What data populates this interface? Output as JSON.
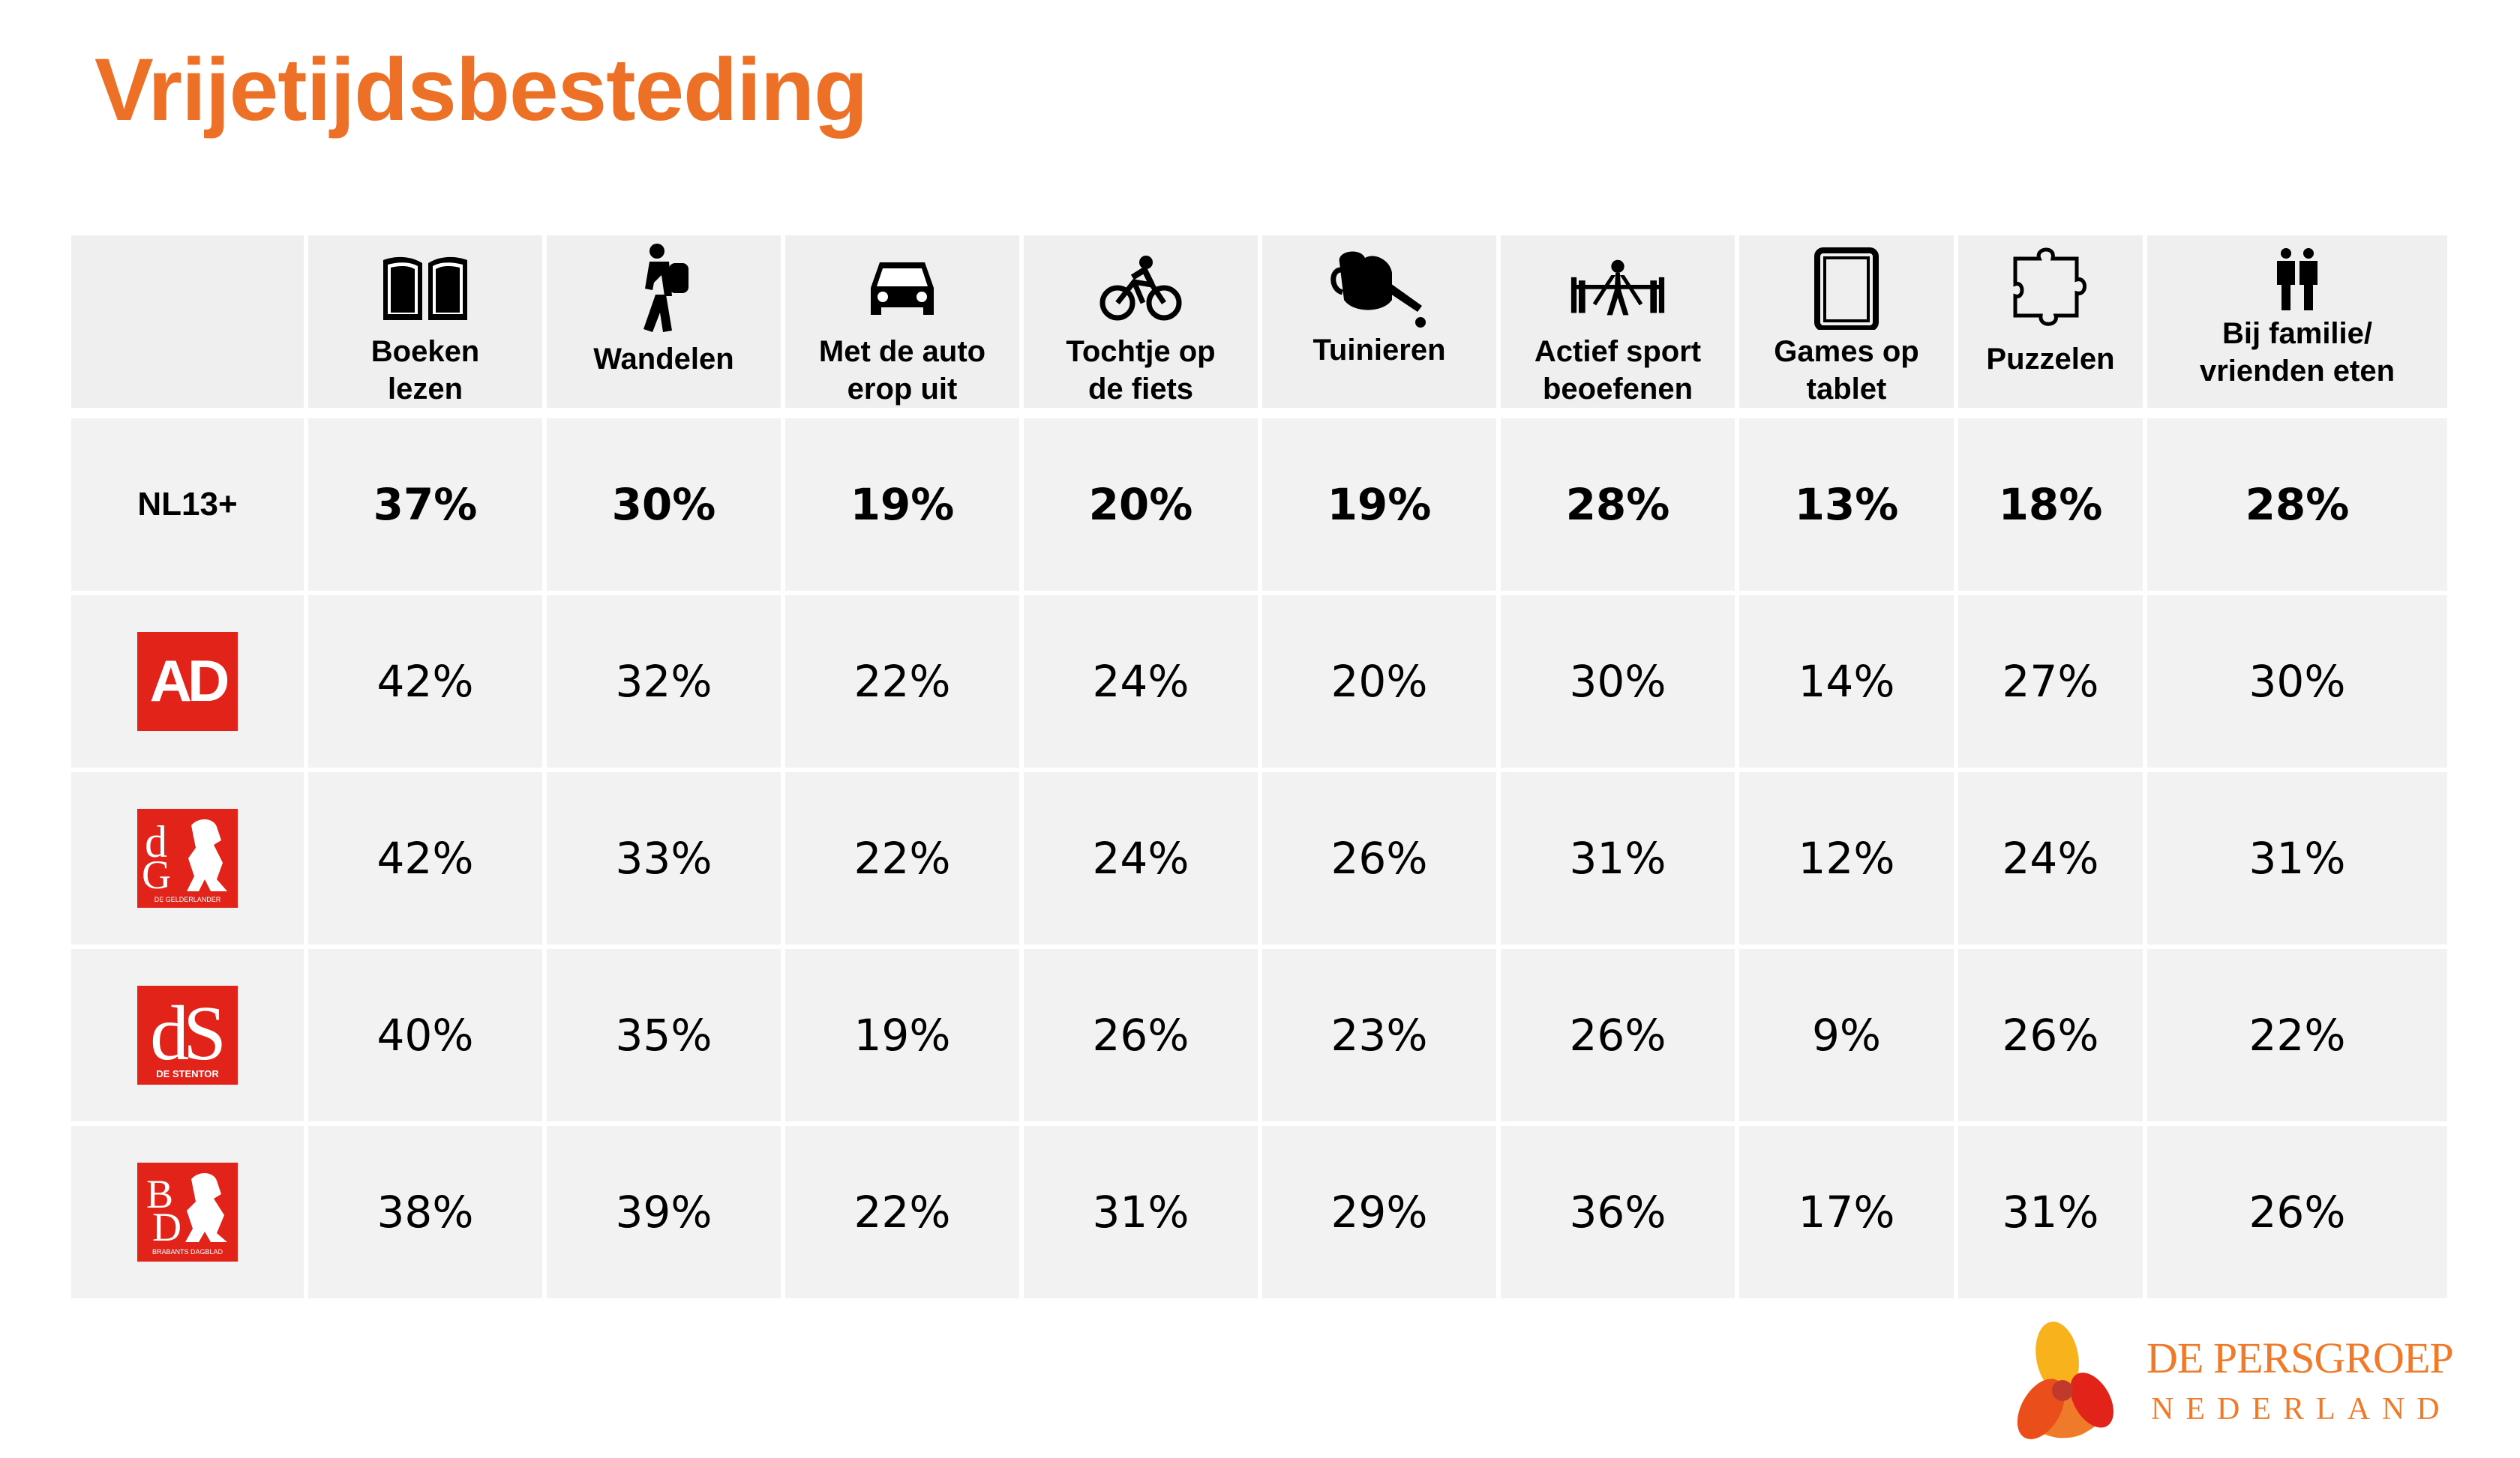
{
  "title": "Vrijetijdsbesteding",
  "columns": [
    {
      "label": "Boeken\nlezen",
      "icon": "book-icon"
    },
    {
      "label": "Wandelen",
      "icon": "hiker-icon"
    },
    {
      "label": "Met de auto\nerop uit",
      "icon": "car-icon"
    },
    {
      "label": "Tochtje op\nde fiets",
      "icon": "cyclist-icon"
    },
    {
      "label": "Tuinieren",
      "icon": "watering-can-icon"
    },
    {
      "label": "Actief sport\nbeoefenen",
      "icon": "weightlifter-icon"
    },
    {
      "label": "Games op\ntablet",
      "icon": "tablet-icon"
    },
    {
      "label": "Puzzelen",
      "icon": "puzzle-icon"
    },
    {
      "label": "Bij familie/\nvrienden eten",
      "icon": "family-icon"
    }
  ],
  "rows": [
    {
      "label": "NL13+",
      "values": [
        "37%",
        "30%",
        "19%",
        "20%",
        "19%",
        "28%",
        "13%",
        "18%",
        "28%"
      ]
    },
    {
      "logo": "AD",
      "values": [
        "42%",
        "32%",
        "22%",
        "24%",
        "20%",
        "30%",
        "14%",
        "27%",
        "30%"
      ]
    },
    {
      "logo": "dG",
      "logo_caption": "DE GELDERLANDER",
      "values": [
        "42%",
        "33%",
        "22%",
        "24%",
        "26%",
        "31%",
        "12%",
        "24%",
        "31%"
      ]
    },
    {
      "logo": "dS",
      "logo_caption": "DE STENTOR",
      "values": [
        "40%",
        "35%",
        "19%",
        "26%",
        "23%",
        "26%",
        "9%",
        "26%",
        "22%"
      ]
    },
    {
      "logo": "BD",
      "logo_caption": "BRABANTS DAGBLAD",
      "values": [
        "38%",
        "39%",
        "22%",
        "31%",
        "29%",
        "36%",
        "17%",
        "31%",
        "26%"
      ]
    }
  ],
  "brand": {
    "line1": "DE PERSGROEP",
    "line2": "NEDERLAND"
  },
  "colors": {
    "title": "#ec7127",
    "logo_red": "#e2231a",
    "brand_orange": "#ef7b2a",
    "cell_bg": "#f2f2f2"
  }
}
